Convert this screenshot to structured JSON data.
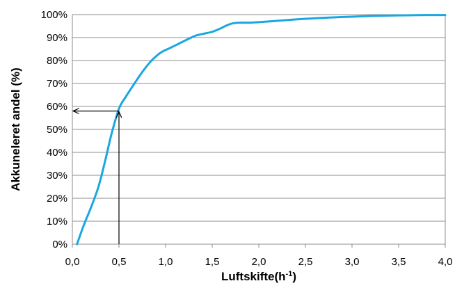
{
  "chart_data": {
    "type": "line",
    "xlabel_main": "Luftskifte(h",
    "xlabel_sup": "-1",
    "xlabel_end": ")",
    "ylabel": "Akkuneleret andel (%)",
    "xlim": [
      0,
      4
    ],
    "ylim": [
      0,
      100
    ],
    "x_ticks": [
      "0,0",
      "0,5",
      "1,0",
      "1,5",
      "2,0",
      "2,5",
      "3,0",
      "3,5",
      "4,0"
    ],
    "y_ticks": [
      "0%",
      "10%",
      "20%",
      "30%",
      "40%",
      "50%",
      "60%",
      "70%",
      "80%",
      "90%",
      "100%"
    ],
    "grid": true,
    "series": [
      {
        "color": "#1aa7e0",
        "x": [
          0.05,
          0.12,
          0.2,
          0.28,
          0.35,
          0.42,
          0.5,
          0.57,
          0.65,
          0.75,
          0.85,
          0.95,
          1.05,
          1.15,
          1.25,
          1.32,
          1.4,
          1.5,
          1.58,
          1.65,
          1.72,
          1.8,
          1.9,
          2.0,
          2.2,
          2.4,
          2.6,
          2.8,
          3.0,
          3.2,
          3.4,
          3.6,
          3.8,
          4.0
        ],
        "y": [
          0,
          8,
          16,
          25,
          36,
          48,
          59,
          64,
          69,
          75,
          80,
          83.5,
          85.5,
          87.5,
          89.5,
          90.8,
          91.6,
          92.5,
          93.8,
          95.2,
          96.2,
          96.5,
          96.5,
          96.7,
          97.3,
          97.9,
          98.4,
          98.8,
          99.1,
          99.4,
          99.6,
          99.7,
          99.8,
          99.8
        ]
      }
    ],
    "annotation": {
      "x": 0.5,
      "y": 58
    }
  }
}
